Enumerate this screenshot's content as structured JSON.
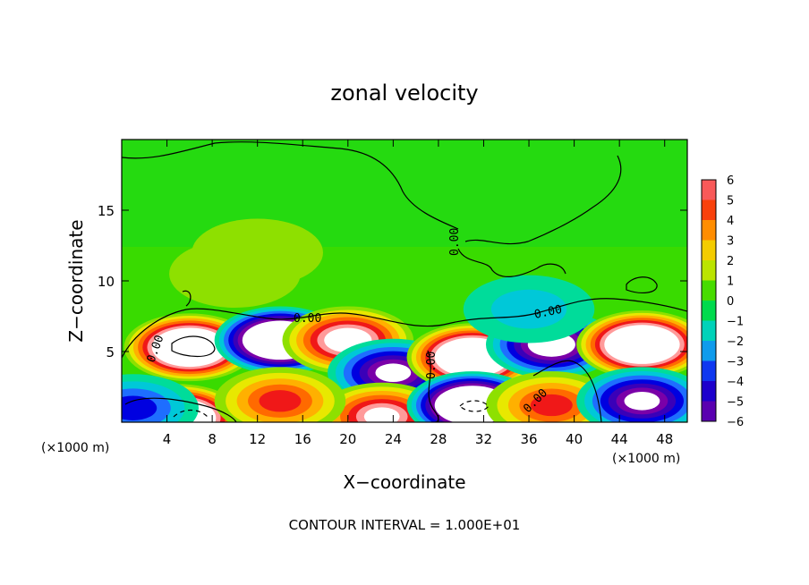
{
  "chart_data": {
    "type": "heatmap",
    "title": "zonal velocity",
    "xlabel": "X−coordinate",
    "ylabel": "Z−coordinate",
    "x_scale_note_left": "(×1000 m)",
    "x_scale_note_right": "(×1000 m)",
    "footnote": "CONTOUR INTERVAL = 1.000E+01",
    "xlim": [
      0,
      50
    ],
    "ylim": [
      0,
      20
    ],
    "x_ticks": [
      4,
      8,
      12,
      16,
      20,
      24,
      28,
      32,
      36,
      40,
      44,
      48
    ],
    "y_ticks": [
      5,
      10,
      15
    ],
    "colorbar": {
      "ticks": [
        6,
        5,
        4,
        3,
        2,
        1,
        0,
        -1,
        -2,
        -3,
        -4,
        -5,
        -6
      ],
      "range": [
        -6,
        6
      ]
    },
    "contour_labels": [
      "0.00",
      "0.00",
      "0.00",
      "0.00",
      "0.00",
      "0.00"
    ],
    "blobs": [
      {
        "x": 6,
        "z": 5.3,
        "v": 12
      },
      {
        "x": 5,
        "z": 0.3,
        "v": 12
      },
      {
        "x": 14,
        "z": 5.8,
        "v": -12
      },
      {
        "x": 20,
        "z": 5.8,
        "v": 8
      },
      {
        "x": 24,
        "z": 3.5,
        "v": -7
      },
      {
        "x": 23,
        "z": 0.4,
        "v": 7
      },
      {
        "x": 31,
        "z": 4.6,
        "v": 12
      },
      {
        "x": 31,
        "z": 1.2,
        "v": -12
      },
      {
        "x": 38,
        "z": 5.5,
        "v": -8
      },
      {
        "x": 38,
        "z": 1.2,
        "v": 5
      },
      {
        "x": 46,
        "z": 5.5,
        "v": 12
      },
      {
        "x": 46,
        "z": 1.5,
        "v": -7
      },
      {
        "x": 14,
        "z": 1.5,
        "v": 5
      },
      {
        "x": 1,
        "z": 1.0,
        "v": -4
      },
      {
        "x": 36,
        "z": 8.0,
        "v": -2
      },
      {
        "x": 10,
        "z": 10.5,
        "v": 1
      },
      {
        "x": 12,
        "z": 12.0,
        "v": 1
      }
    ],
    "background_value": 0.4
  }
}
